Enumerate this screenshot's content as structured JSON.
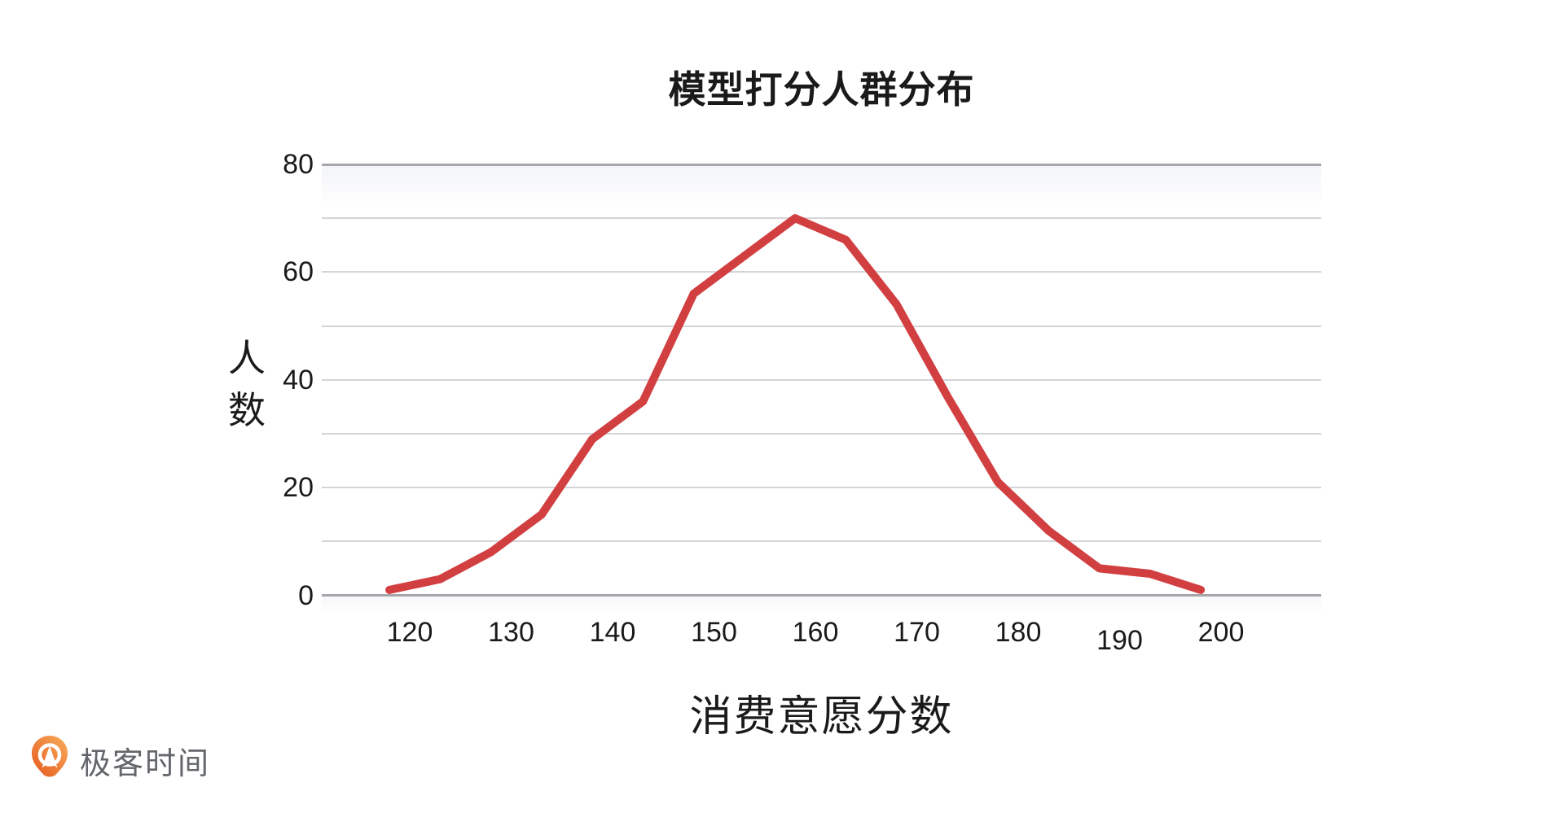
{
  "chart_data": {
    "type": "line",
    "title": "模型打分人群分布",
    "xlabel": "消费意愿分数",
    "ylabel": "人数",
    "x": [
      118,
      123,
      128,
      133,
      138,
      143,
      148,
      153,
      158,
      163,
      168,
      173,
      178,
      183,
      188,
      193,
      198
    ],
    "values": [
      1,
      3,
      8,
      15,
      29,
      36,
      56,
      63,
      70,
      66,
      54,
      37,
      21,
      12,
      5,
      4,
      1
    ],
    "x_ticks": [
      120,
      130,
      140,
      150,
      160,
      170,
      180,
      190,
      200
    ],
    "y_ticks": [
      0,
      20,
      40,
      60,
      80
    ],
    "ylim": [
      0,
      80
    ],
    "xlim": [
      111,
      210
    ],
    "grid": "horizontal lines every 10, bold lines at 0 and 80",
    "legend": "none",
    "line_color": "#d23f41",
    "gridline_color": "#d5d5d9",
    "axis_line_color": "#a7a7ab",
    "text_color": "#1a1a1a"
  },
  "footer": {
    "logo_text": "极客时间",
    "logo_orange_light": "#f6a254",
    "logo_orange_dark": "#e55a1d",
    "logo_text_color": "#63666b"
  }
}
